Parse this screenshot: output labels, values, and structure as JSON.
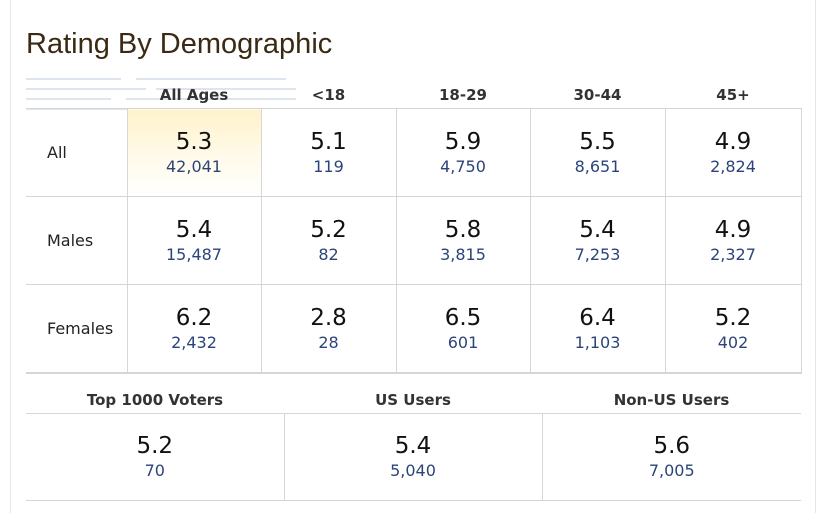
{
  "title": "Rating By Demographic",
  "demographics": {
    "columns": [
      "All Ages",
      "<18",
      "18-29",
      "30-44",
      "45+"
    ],
    "rows": [
      {
        "label": "All",
        "cells": [
          {
            "rating": "5.3",
            "votes": "42,041"
          },
          {
            "rating": "5.1",
            "votes": "119"
          },
          {
            "rating": "5.9",
            "votes": "4,750"
          },
          {
            "rating": "5.5",
            "votes": "8,651"
          },
          {
            "rating": "4.9",
            "votes": "2,824"
          }
        ]
      },
      {
        "label": "Males",
        "cells": [
          {
            "rating": "5.4",
            "votes": "15,487"
          },
          {
            "rating": "5.2",
            "votes": "82"
          },
          {
            "rating": "5.8",
            "votes": "3,815"
          },
          {
            "rating": "5.4",
            "votes": "7,253"
          },
          {
            "rating": "4.9",
            "votes": "2,327"
          }
        ]
      },
      {
        "label": "Females",
        "cells": [
          {
            "rating": "6.2",
            "votes": "2,432"
          },
          {
            "rating": "2.8",
            "votes": "28"
          },
          {
            "rating": "6.5",
            "votes": "601"
          },
          {
            "rating": "6.4",
            "votes": "1,103"
          },
          {
            "rating": "5.2",
            "votes": "402"
          }
        ]
      }
    ]
  },
  "groups": [
    {
      "label": "Top 1000 Voters",
      "rating": "5.2",
      "votes": "70"
    },
    {
      "label": "US Users",
      "rating": "5.4",
      "votes": "5,040"
    },
    {
      "label": "Non-US Users",
      "rating": "5.6",
      "votes": "7,005"
    }
  ],
  "colors": {
    "title": "#3a2a14",
    "votes_link": "#2b4479",
    "highlight": "#fff2cc",
    "border": "#d6d6d6"
  }
}
